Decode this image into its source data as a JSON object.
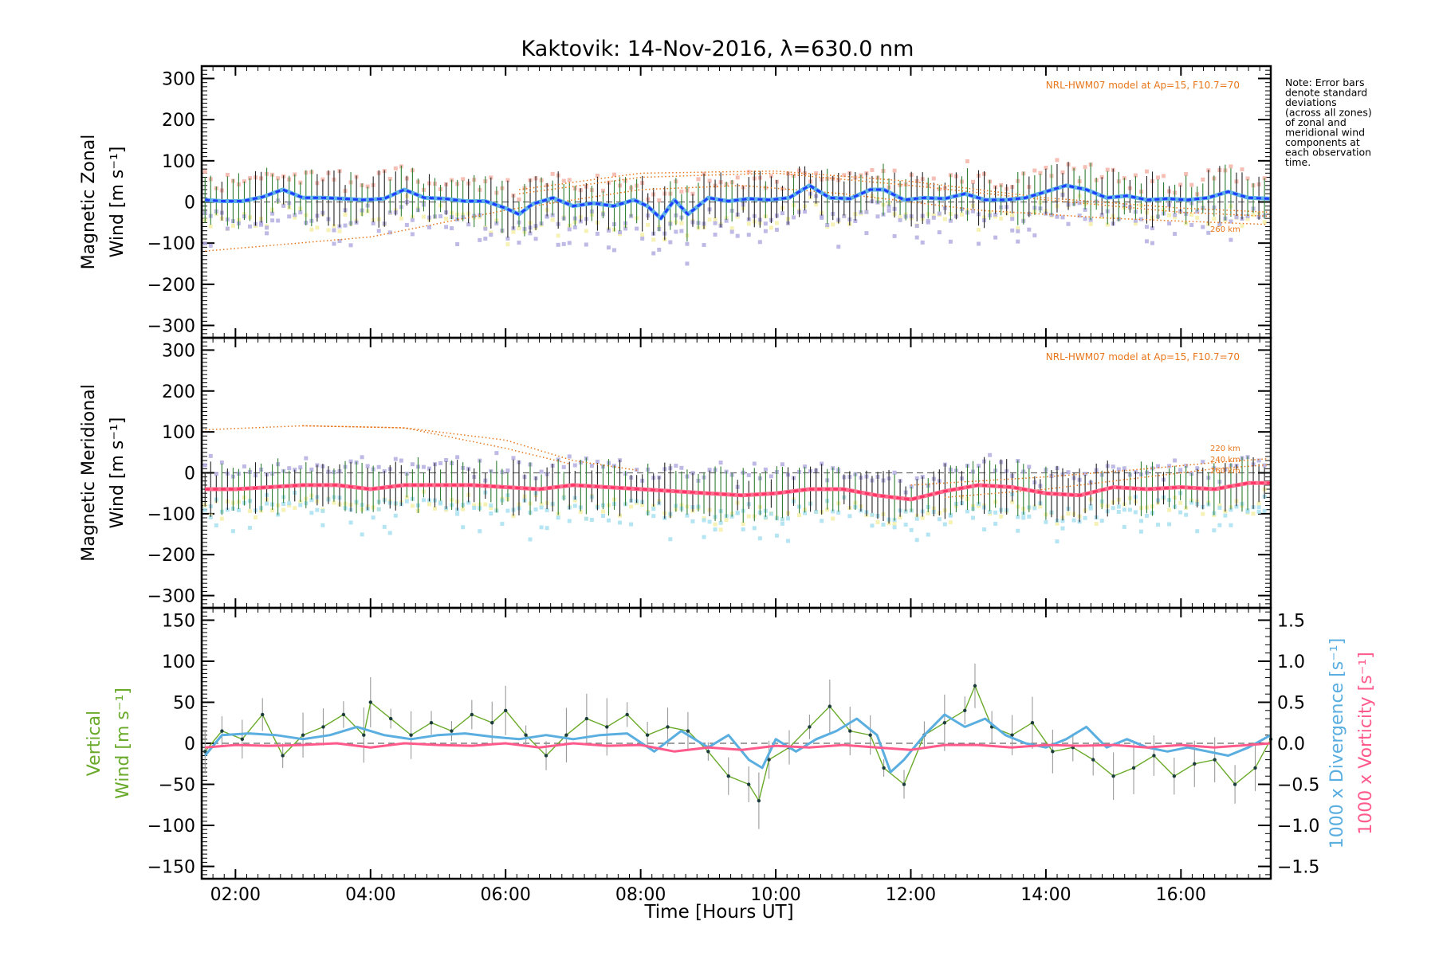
{
  "title": "Kaktovik: 14-Nov-2016, λ=630.0 nm",
  "note": "Note: Error bars denote standard deviations (across all zones) of zonal and meridional wind components at each observation time.",
  "note_lines": [
    "Note: Error bars",
    "denote standard",
    "deviations",
    "(across all zones)",
    "of zonal and",
    "meridional wind",
    "components at",
    "each observation",
    "time."
  ],
  "xlabel": "Time [Hours UT]",
  "colors": {
    "zonal_line": "#1e3cff",
    "zonal_line_alt": "#5fb3e6",
    "meridional_line": "#ff3366",
    "vertical": "#6aaa2a",
    "divergence": "#5aaee0",
    "vorticity": "#ff5a8c",
    "model": "#e8761a",
    "error_bar": "#222222",
    "error_bar_green": "#2e7d32",
    "zone_pink": "#f5b4a8",
    "zone_purple": "#b3aee0",
    "zone_yellow": "#f5f0a8",
    "zone_cyan": "#a8e0f0",
    "vertical_err": "#9a9a9a"
  },
  "chart_data": [
    {
      "type": "line",
      "panel": "zonal",
      "ylabel_lines": [
        "Magnetic Zonal",
        "Wind [m s⁻¹]"
      ],
      "xlim": [
        1.5,
        17.33
      ],
      "ylim": [
        -330,
        330
      ],
      "yticks": [
        -300,
        -200,
        -100,
        0,
        100,
        200,
        300
      ],
      "xtick_values": [
        2,
        4,
        6,
        8,
        10,
        12,
        14,
        16
      ],
      "xticks": [
        "02:00",
        "04:00",
        "06:00",
        "08:00",
        "10:00",
        "12:00",
        "14:00",
        "16:00"
      ],
      "model_label": "NRL-HWM07 model at Ap=15, F10.7=70",
      "model_alt_labels": [
        "260 km"
      ],
      "series": [
        {
          "x": [
            1.55,
            1.8,
            2.1,
            2.4,
            2.7,
            3.0,
            3.3,
            3.6,
            3.9,
            4.2,
            4.5,
            4.8,
            5.1,
            5.4,
            5.7,
            6.0,
            6.2,
            6.4,
            6.7,
            7.0,
            7.3,
            7.6,
            7.9,
            8.1,
            8.3,
            8.5,
            8.7,
            9.0,
            9.3,
            9.6,
            9.9,
            10.2,
            10.5,
            10.8,
            11.1,
            11.4,
            11.6,
            11.9,
            12.2,
            12.5,
            12.8,
            13.1,
            13.4,
            13.7,
            14.0,
            14.3,
            14.6,
            14.9,
            15.2,
            15.5,
            15.8,
            16.1,
            16.4,
            16.7,
            17.0,
            17.33
          ],
          "y": [
            5,
            2,
            2,
            12,
            30,
            10,
            10,
            8,
            5,
            8,
            30,
            10,
            8,
            2,
            2,
            -15,
            -30,
            -5,
            10,
            -10,
            -3,
            -10,
            5,
            -10,
            -40,
            5,
            -30,
            10,
            2,
            8,
            5,
            10,
            40,
            10,
            8,
            30,
            30,
            5,
            10,
            8,
            20,
            5,
            5,
            10,
            25,
            40,
            30,
            10,
            15,
            5,
            8,
            5,
            10,
            25,
            10,
            8
          ]
        }
      ],
      "model": [
        {
          "x": [
            1.5,
            4.0,
            6.0,
            8.0,
            9.5,
            11.0,
            13.0,
            15.0,
            17.33
          ],
          "y": [
            -120,
            -85,
            -20,
            30,
            40,
            20,
            -20,
            -40,
            -55
          ]
        },
        {
          "x": [
            6.2,
            8.0,
            10.0,
            12.0,
            14.0,
            16.0,
            17.33
          ],
          "y": [
            20,
            60,
            70,
            40,
            5,
            -25,
            -35
          ]
        },
        {
          "x": [
            6.2,
            8.0,
            10.0,
            12.0,
            14.0,
            16.0,
            17.33
          ],
          "y": [
            30,
            70,
            75,
            50,
            10,
            -15,
            -25
          ]
        }
      ]
    },
    {
      "type": "line",
      "panel": "meridional",
      "ylabel_lines": [
        "Magnetic Meridional",
        "Wind [m s⁻¹]"
      ],
      "xlim": [
        1.5,
        17.33
      ],
      "ylim": [
        -330,
        330
      ],
      "yticks": [
        -300,
        -200,
        -100,
        0,
        100,
        200,
        300
      ],
      "model_label": "NRL-HWM07 model at Ap=15, F10.7=70",
      "model_alt_labels": [
        "220 km",
        "240 km",
        "260 km"
      ],
      "series": [
        {
          "x": [
            1.55,
            2.0,
            2.5,
            3.0,
            3.5,
            4.0,
            4.5,
            5.0,
            5.5,
            6.0,
            6.5,
            7.0,
            7.5,
            8.0,
            8.5,
            9.0,
            9.5,
            10.0,
            10.5,
            11.0,
            11.5,
            12.0,
            12.5,
            13.0,
            13.5,
            14.0,
            14.5,
            15.0,
            15.5,
            16.0,
            16.5,
            17.0,
            17.33
          ],
          "y": [
            -40,
            -40,
            -35,
            -30,
            -30,
            -40,
            -30,
            -30,
            -30,
            -35,
            -40,
            -30,
            -35,
            -40,
            -45,
            -50,
            -55,
            -50,
            -40,
            -40,
            -55,
            -65,
            -45,
            -30,
            -35,
            -50,
            -55,
            -35,
            -40,
            -35,
            -40,
            -25,
            -25
          ]
        }
      ],
      "model": [
        {
          "x": [
            1.5,
            3.0,
            4.5,
            6.0,
            7.0
          ],
          "y": [
            105,
            115,
            110,
            60,
            20
          ]
        },
        {
          "x": [
            3.0,
            4.5,
            6.0,
            7.0,
            8.0
          ],
          "y": [
            115,
            110,
            80,
            30,
            5
          ]
        },
        {
          "x": [
            12.0,
            14.0,
            15.5,
            16.5,
            17.33
          ],
          "y": [
            -30,
            -10,
            10,
            25,
            35
          ]
        },
        {
          "x": [
            12.5,
            14.0,
            15.5,
            16.5,
            17.33
          ],
          "y": [
            -60,
            -40,
            -10,
            10,
            20
          ]
        }
      ]
    },
    {
      "type": "line",
      "panel": "vertical",
      "ylabel_lines": [
        "Vertical",
        "Wind [m s⁻¹]"
      ],
      "y2label_lines": [
        "1000 x Divergence [s⁻¹]",
        "1000 x Vorticity [s⁻¹]"
      ],
      "xlim": [
        1.5,
        17.33
      ],
      "ylim": [
        -165,
        165
      ],
      "yticks": [
        -150,
        -100,
        -50,
        0,
        50,
        100,
        150
      ],
      "y2lim": [
        -1.65,
        1.65
      ],
      "y2ticks": [
        -1.5,
        -1.0,
        -0.5,
        0.0,
        0.5,
        1.0,
        1.5
      ],
      "series": [
        {
          "name": "Vertical Wind",
          "x": [
            1.55,
            1.8,
            2.1,
            2.4,
            2.7,
            3.0,
            3.3,
            3.6,
            3.9,
            4.0,
            4.3,
            4.6,
            4.9,
            5.2,
            5.5,
            5.8,
            6.0,
            6.3,
            6.6,
            6.9,
            7.2,
            7.5,
            7.8,
            8.1,
            8.4,
            8.7,
            9.0,
            9.3,
            9.6,
            9.75,
            9.9,
            10.2,
            10.5,
            10.8,
            11.1,
            11.4,
            11.6,
            11.9,
            12.2,
            12.5,
            12.8,
            12.95,
            13.2,
            13.5,
            13.8,
            14.1,
            14.4,
            14.7,
            15.0,
            15.3,
            15.6,
            15.9,
            16.2,
            16.5,
            16.8,
            17.1,
            17.33
          ],
          "y": [
            -10,
            15,
            5,
            35,
            -15,
            10,
            20,
            35,
            10,
            50,
            30,
            10,
            25,
            15,
            35,
            25,
            40,
            10,
            -15,
            10,
            30,
            20,
            35,
            10,
            20,
            15,
            -10,
            -40,
            -50,
            -70,
            -20,
            -5,
            20,
            45,
            15,
            10,
            -30,
            -50,
            10,
            25,
            40,
            70,
            20,
            10,
            25,
            -10,
            -5,
            -20,
            -40,
            -30,
            -15,
            -40,
            -25,
            -20,
            -50,
            -30,
            5
          ]
        },
        {
          "name": "Divergence",
          "x": [
            1.55,
            1.8,
            2.2,
            2.6,
            3.0,
            3.4,
            3.8,
            4.2,
            4.6,
            5.0,
            5.4,
            5.8,
            6.2,
            6.6,
            7.0,
            7.4,
            7.8,
            8.2,
            8.6,
            9.0,
            9.3,
            9.6,
            9.8,
            10.0,
            10.3,
            10.6,
            10.9,
            11.2,
            11.5,
            11.7,
            11.9,
            12.2,
            12.5,
            12.8,
            13.1,
            13.4,
            13.7,
            14.0,
            14.3,
            14.6,
            14.9,
            15.2,
            15.5,
            15.8,
            16.1,
            16.4,
            16.7,
            17.0,
            17.33
          ],
          "y": [
            -0.15,
            0.1,
            0.12,
            0.1,
            0.05,
            0.1,
            0.2,
            0.1,
            0.05,
            0.1,
            0.12,
            0.08,
            0.05,
            0.1,
            0.05,
            0.1,
            0.12,
            -0.1,
            0.15,
            -0.05,
            0.1,
            -0.2,
            -0.3,
            0.05,
            -0.1,
            0.05,
            0.15,
            0.3,
            0.1,
            -0.35,
            -0.2,
            0.1,
            0.35,
            0.2,
            0.3,
            0.1,
            0.0,
            -0.05,
            0.05,
            0.2,
            -0.05,
            0.05,
            -0.05,
            -0.1,
            -0.05,
            -0.1,
            -0.15,
            -0.05,
            0.1
          ]
        },
        {
          "name": "Vorticity",
          "x": [
            1.55,
            2.0,
            2.5,
            3.0,
            3.5,
            4.0,
            4.5,
            5.0,
            5.5,
            6.0,
            6.5,
            7.0,
            7.5,
            8.0,
            8.5,
            9.0,
            9.5,
            10.0,
            10.5,
            11.0,
            11.5,
            12.0,
            12.5,
            13.0,
            13.5,
            14.0,
            14.5,
            15.0,
            15.5,
            16.0,
            16.5,
            17.0,
            17.33
          ],
          "y": [
            -0.05,
            -0.02,
            -0.03,
            -0.02,
            0.0,
            -0.05,
            0.0,
            -0.02,
            -0.03,
            0.0,
            -0.05,
            0.0,
            -0.03,
            -0.02,
            -0.1,
            -0.05,
            -0.08,
            -0.03,
            -0.05,
            -0.02,
            -0.05,
            -0.08,
            -0.02,
            -0.02,
            -0.05,
            -0.02,
            -0.03,
            -0.02,
            -0.05,
            -0.02,
            -0.05,
            -0.02,
            0.0
          ]
        }
      ]
    }
  ]
}
